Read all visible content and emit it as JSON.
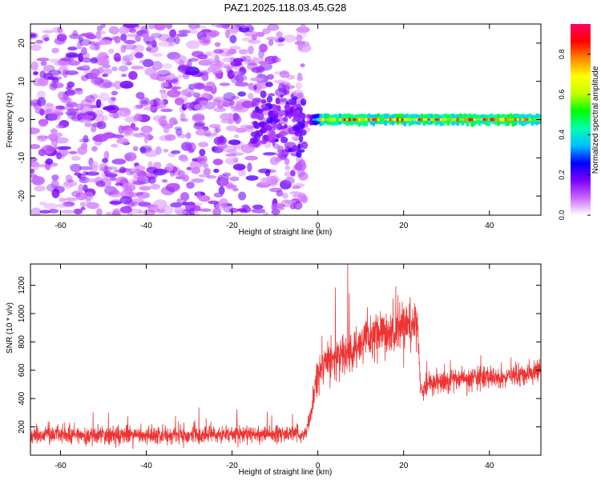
{
  "title": "PAZ1.2025.118.03.45.G28",
  "chart_data": [
    {
      "type": "heatmap",
      "xlabel": "Height of straight line (km)",
      "ylabel": "Frequency (Hz)",
      "xlim": [
        -67,
        52
      ],
      "ylim": [
        -25,
        25
      ],
      "xticks": [
        -60,
        -40,
        -20,
        0,
        20,
        40
      ],
      "yticks": [
        -20,
        -10,
        0,
        10,
        20
      ],
      "grid": false,
      "description_of_values": "Spectral amplitude vs height: diffuse low-amplitude scattered power across frequencies for heights below about -3 km; above 0 km power concentrated in a narrow band near 0 Hz (about -1 to 1 Hz) with normalized amplitude up to about 0.95.",
      "band": {
        "x_start": -3,
        "x_end": 52,
        "f_half_width_hz": 1.0,
        "peak_amplitude": 0.95
      },
      "diffuse_region": {
        "x_start": -67,
        "x_end": -3,
        "f_range": [
          -25,
          25
        ],
        "typical_amplitude": [
          0.0,
          0.12
        ]
      },
      "colorbar": {
        "label": "Normalized spectral amplitude",
        "range": [
          0.0,
          0.95
        ],
        "ticks": [
          0.0,
          0.2,
          0.4,
          0.6,
          0.8
        ],
        "colors": [
          "#ffffff",
          "#cc66ff",
          "#7a00ff",
          "#0000ff",
          "#00bfff",
          "#00ffb0",
          "#00ff00",
          "#c8ff00",
          "#ffff00",
          "#ff8800",
          "#ff0000",
          "#ff0066"
        ]
      }
    },
    {
      "type": "line",
      "xlabel": "Height of straight line (km)",
      "ylabel": "SNR (10 * v/v)",
      "xlim": [
        -67,
        52
      ],
      "ylim": [
        0,
        1350
      ],
      "xticks": [
        -60,
        -40,
        -20,
        0,
        20,
        40
      ],
      "yticks": [
        200,
        400,
        600,
        800,
        1000,
        1200
      ],
      "grid": false,
      "color": "#ee3333",
      "series": [
        {
          "x": [
            -67,
            -60,
            -50,
            -40,
            -30,
            -20,
            -10,
            -5,
            -3,
            -2,
            0,
            2,
            5,
            8,
            10,
            12,
            15,
            18,
            20,
            22,
            23,
            24,
            26,
            30,
            35,
            40,
            45,
            50,
            52
          ],
          "values": [
            140,
            145,
            140,
            140,
            140,
            145,
            150,
            150,
            155,
            220,
            580,
            650,
            700,
            730,
            780,
            800,
            850,
            880,
            900,
            920,
            930,
            460,
            500,
            520,
            540,
            550,
            560,
            580,
            600
          ],
          "noise": [
            55,
            55,
            55,
            55,
            55,
            55,
            55,
            55,
            55,
            60,
            110,
            120,
            130,
            140,
            140,
            145,
            150,
            150,
            150,
            140,
            140,
            60,
            65,
            70,
            70,
            70,
            70,
            75,
            80
          ]
        }
      ]
    }
  ]
}
